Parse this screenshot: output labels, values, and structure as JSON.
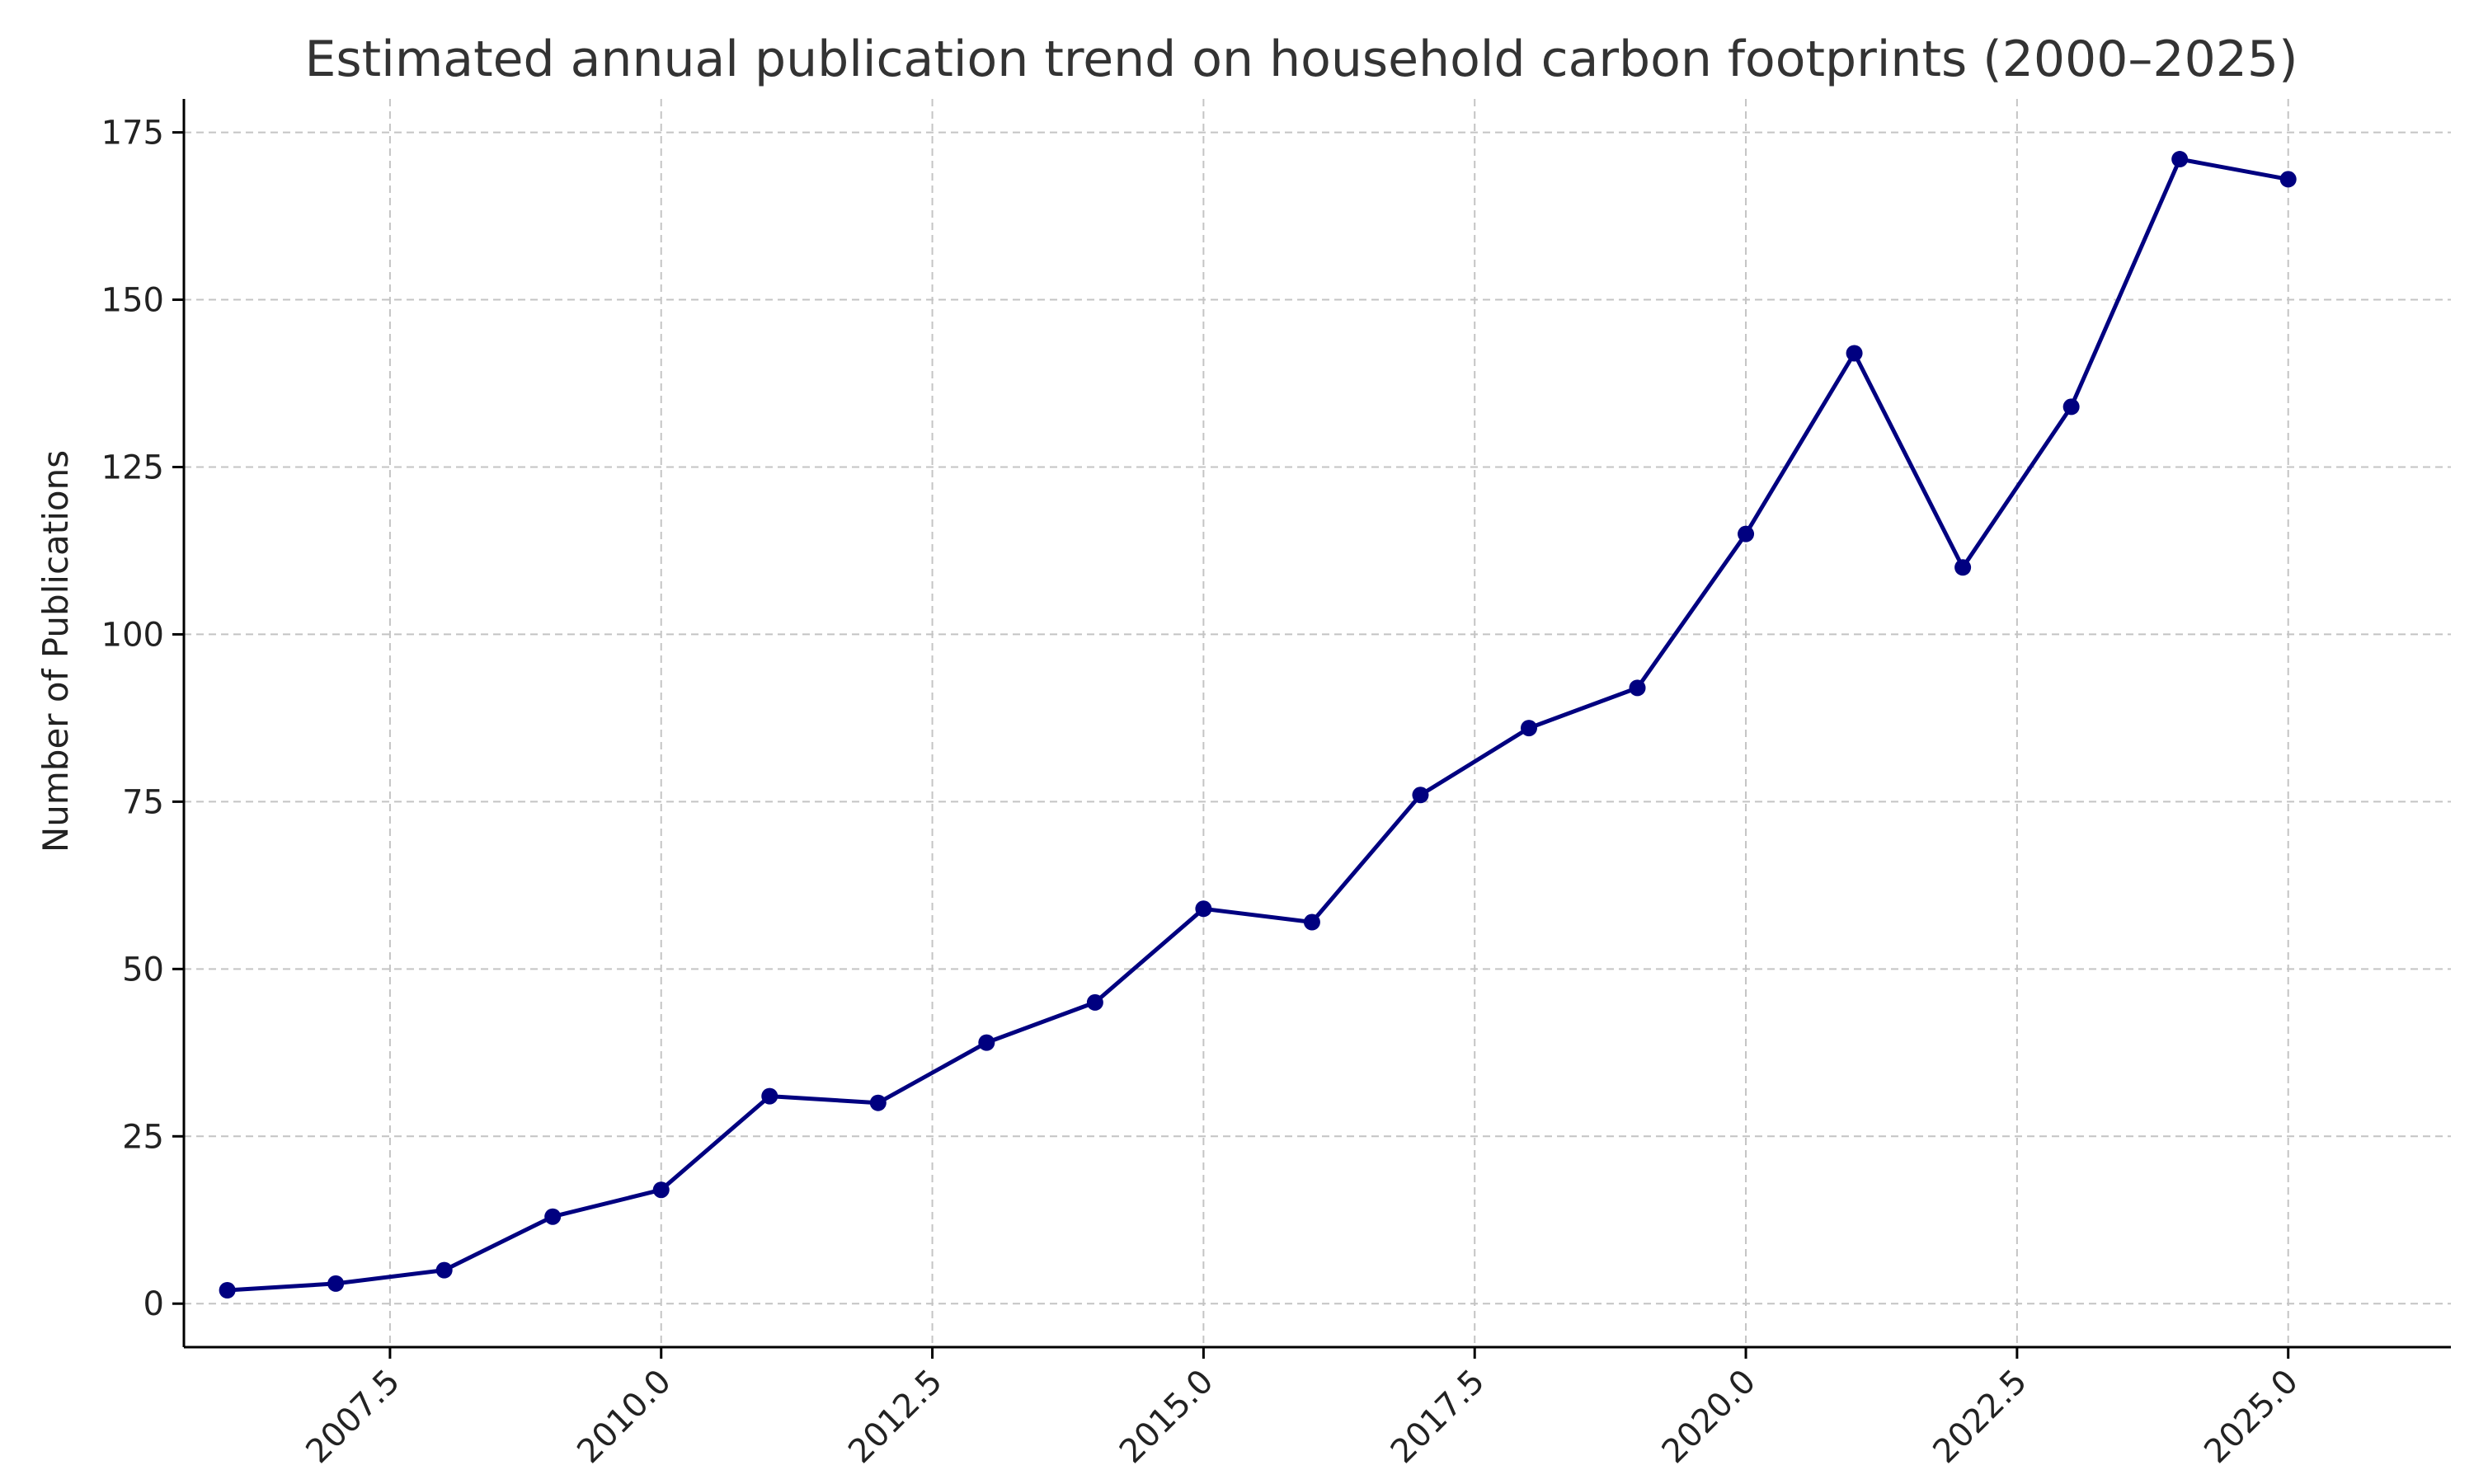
{
  "chart_data": {
    "type": "line",
    "title": "Estimated annual publication trend on household carbon footprints (2000–2025)",
    "xlabel": "",
    "ylabel": "Number of Publications",
    "xlim": [
      2005.6,
      2026.5
    ],
    "ylim": [
      -6.5,
      180
    ],
    "x_ticks": [
      2007.5,
      2010.0,
      2012.5,
      2015.0,
      2017.5,
      2020.0,
      2022.5,
      2025.0
    ],
    "x_tick_labels": [
      "2007.5",
      "2010.0",
      "2012.5",
      "2015.0",
      "2017.5",
      "2020.0",
      "2022.5",
      "2025.0"
    ],
    "y_ticks": [
      0,
      25,
      50,
      75,
      100,
      125,
      150,
      175
    ],
    "y_tick_labels": [
      "0",
      "25",
      "50",
      "75",
      "100",
      "125",
      "150",
      "175"
    ],
    "grid": true,
    "legend": "none",
    "series": [
      {
        "color": "#000080",
        "marker": "circle",
        "x": [
          2006,
          2007,
          2008,
          2009,
          2010,
          2011,
          2012,
          2013,
          2014,
          2015,
          2016,
          2017,
          2018,
          2019,
          2020,
          2021,
          2022,
          2023,
          2024,
          2025
        ],
        "values": [
          2,
          3,
          5,
          13,
          17,
          31,
          30,
          39,
          45,
          59,
          57,
          76,
          86,
          92,
          115,
          142,
          110,
          134,
          171,
          168
        ]
      }
    ]
  }
}
